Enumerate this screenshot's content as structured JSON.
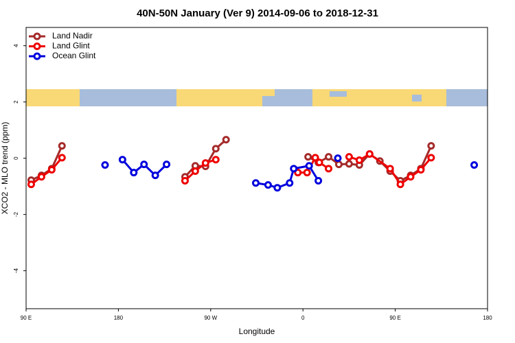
{
  "chart_data": {
    "type": "line",
    "title": "40N-50N January (Ver 9)   2014-09-06 to 2018-12-31",
    "x_label": "Longitude",
    "y_label": "XCO2 - MLO trend (ppm)",
    "xlim": [
      90,
      540
    ],
    "ylim": [
      -5.35,
      4.65
    ],
    "xticks": [
      {
        "value": 90,
        "label": "90 E"
      },
      180,
      {
        "value": 270,
        "label": "90 W"
      },
      {
        "value": 360,
        "label": "0"
      },
      {
        "value": 450,
        "label": "90 E"
      },
      {
        "value": 540,
        "label": "180"
      }
    ],
    "yticks": [
      -4,
      -2,
      0,
      2,
      4
    ],
    "legend": "top-left",
    "series": [
      {
        "name": "Land Nadir",
        "color": "#a52a2a",
        "x": [
          95,
          105,
          115,
          125,
          null,
          245,
          255,
          265,
          275,
          285,
          null,
          365,
          375,
          385,
          395,
          405,
          415,
          425,
          435,
          445,
          455,
          465,
          475,
          485
        ],
        "values": [
          -0.78,
          -0.61,
          -0.37,
          0.44,
          null,
          -0.66,
          -0.27,
          -0.29,
          0.34,
          0.66,
          null,
          0.05,
          -0.15,
          0.05,
          -0.22,
          -0.2,
          -0.24,
          0.15,
          -0.1,
          -0.46,
          -0.8,
          -0.61,
          -0.37,
          0.44
        ]
      },
      {
        "name": "Land Glint",
        "color": "#ee0000",
        "x": [
          95,
          105,
          115,
          125,
          null,
          245,
          255,
          265,
          275,
          null,
          355,
          364,
          372,
          376,
          385,
          null,
          405,
          415,
          425,
          445,
          455,
          465,
          475,
          485
        ],
        "values": [
          -0.93,
          -0.66,
          -0.41,
          0.02,
          null,
          -0.8,
          -0.46,
          -0.17,
          -0.05,
          null,
          -0.51,
          -0.51,
          0.02,
          -0.15,
          -0.37,
          null,
          0.05,
          -0.07,
          0.15,
          -0.37,
          -0.93,
          -0.66,
          -0.41,
          0.02
        ]
      },
      {
        "name": "Ocean Glint",
        "color": "#0000dd",
        "x": [
          167,
          null,
          184,
          195,
          205,
          216,
          227,
          null,
          314,
          326,
          335,
          347,
          351,
          366,
          375,
          null,
          394,
          null,
          527
        ],
        "values": [
          -0.24,
          null,
          -0.05,
          -0.51,
          -0.22,
          -0.61,
          -0.22,
          null,
          -0.88,
          -0.95,
          -1.05,
          -0.88,
          -0.37,
          -0.27,
          -0.8,
          null,
          0.0,
          null,
          -0.24
        ]
      }
    ]
  }
}
